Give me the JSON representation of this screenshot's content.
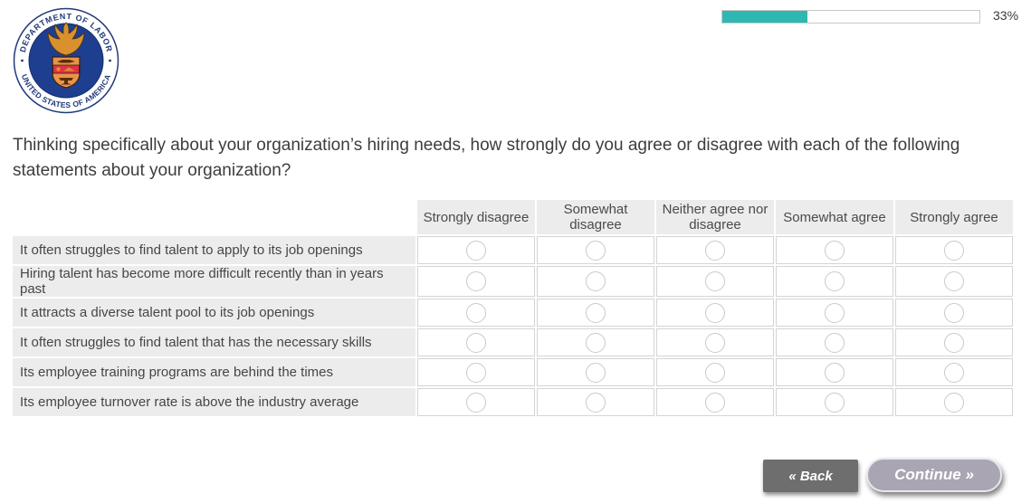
{
  "logo": {
    "alt": "U.S. Department of Labor seal",
    "ring_text_top": "DEPARTMENT OF LABOR",
    "ring_text_bottom": "UNITED STATES OF AMERICA",
    "colors": {
      "ring_blue": "#223a7a",
      "inner_navy": "#1e3f8f",
      "eagle_gold": "#d9912f",
      "shield_red": "#e0304a",
      "shield_orange": "#e8944a"
    }
  },
  "progress_bar": {
    "percent": 33,
    "label": "33%",
    "fill_color": "#2eb8b1"
  },
  "question": {
    "text": "Thinking specifically about your organization’s hiring needs, how strongly do you agree or disagree with each of the following statements about your organization?"
  },
  "matrix": {
    "column_headers": [
      "Strongly disagree",
      "Somewhat disagree",
      "Neither agree nor disagree",
      "Somewhat agree",
      "Strongly agree"
    ],
    "rows": [
      "It often struggles to find talent to apply to its job openings",
      "Hiring talent has become more difficult recently than in years past",
      "It attracts a diverse talent pool to its job openings",
      "It often struggles to find talent that has the necessary skills",
      "Its employee training programs are behind the times",
      "Its employee turnover rate is above the industry average"
    ],
    "radio_state": "all unselected"
  },
  "navigation": {
    "back_label": "« Back",
    "continue_label": "Continue »"
  }
}
